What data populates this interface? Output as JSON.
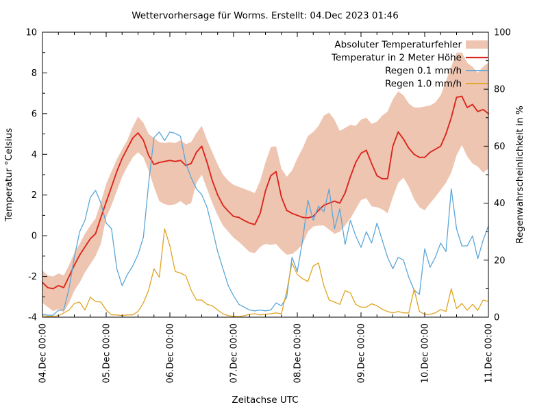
{
  "title": "Wettervorhersage für Worms. Erstellt: 04.Dec 2023 01:46",
  "chart_data": {
    "type": "line",
    "title": "Wettervorhersage für Worms. Erstellt: 04.Dec 2023 01:46",
    "xlabel": "Zeitachse UTC",
    "ylabel_left": "Temperatur °Celsius",
    "ylabel_right": "Regenwahrscheinlichkeit in %",
    "ylim_left": [
      -4,
      10
    ],
    "ylim_right": [
      0,
      100
    ],
    "yticks_left": [
      -4,
      -2,
      0,
      2,
      4,
      6,
      8,
      10
    ],
    "yticks_right": [
      0,
      20,
      40,
      60,
      80,
      100
    ],
    "x_range_hours": [
      0,
      168
    ],
    "x_major_step_hours": 24,
    "x_minor_step_hours": 6,
    "x_tick_labels": [
      "04.Dec 00:00",
      "05.Dec 00:00",
      "06.Dec 00:00",
      "07.Dec 00:00",
      "08.Dec 00:00",
      "09.Dec 00:00",
      "10.Dec 00:00",
      "11.Dec 00:00"
    ],
    "grid": false,
    "legend_position": "top-right",
    "hours": [
      0,
      2,
      4,
      6,
      8,
      10,
      12,
      14,
      16,
      18,
      20,
      22,
      24,
      26,
      28,
      30,
      32,
      34,
      36,
      38,
      40,
      42,
      44,
      46,
      48,
      50,
      52,
      54,
      56,
      58,
      60,
      62,
      64,
      66,
      68,
      70,
      72,
      74,
      76,
      78,
      80,
      82,
      84,
      86,
      88,
      90,
      92,
      94,
      96,
      98,
      100,
      102,
      104,
      106,
      108,
      110,
      112,
      114,
      116,
      118,
      120,
      122,
      124,
      126,
      128,
      130,
      132,
      134,
      136,
      138,
      140,
      142,
      144,
      146,
      148,
      150,
      152,
      154,
      156,
      158,
      160,
      162,
      164,
      166,
      168
    ],
    "series": [
      {
        "name": "Absoluter Temperaturfehler",
        "type": "band",
        "axis": "left",
        "color": "#eec5b1",
        "upper": [
          -1.7,
          -1.95,
          -2.0,
          -1.85,
          -1.95,
          -1.45,
          -0.85,
          -0.4,
          0.1,
          0.5,
          0.85,
          1.65,
          2.55,
          3.15,
          3.75,
          4.25,
          4.7,
          5.35,
          5.85,
          5.55,
          5.0,
          4.8,
          4.6,
          4.55,
          4.6,
          4.55,
          4.7,
          4.5,
          4.6,
          5.05,
          5.4,
          4.7,
          4.1,
          3.5,
          3.0,
          2.7,
          2.5,
          2.4,
          2.3,
          2.2,
          2.1,
          2.7,
          3.6,
          4.35,
          4.4,
          3.3,
          2.9,
          3.2,
          3.8,
          4.3,
          4.9,
          5.1,
          5.4,
          5.9,
          6.05,
          5.7,
          5.15,
          5.3,
          5.45,
          5.4,
          5.7,
          5.8,
          5.5,
          5.6,
          5.9,
          6.1,
          6.7,
          7.1,
          6.9,
          6.5,
          6.3,
          6.3,
          6.35,
          6.4,
          6.55,
          6.9,
          7.6,
          8.3,
          9.0,
          9.0,
          8.5,
          8.3,
          8.0,
          8.3,
          8.5
        ],
        "lower": [
          -3.3,
          -3.5,
          -3.7,
          -3.6,
          -3.75,
          -3.3,
          -2.7,
          -2.3,
          -1.8,
          -1.4,
          -1.0,
          -0.4,
          0.9,
          1.5,
          2.2,
          2.9,
          3.4,
          3.85,
          4.1,
          3.85,
          3.2,
          2.4,
          1.7,
          1.55,
          1.5,
          1.55,
          1.7,
          1.5,
          1.6,
          2.6,
          3.0,
          2.3,
          1.6,
          1.0,
          0.5,
          0.2,
          -0.1,
          -0.3,
          -0.55,
          -0.8,
          -0.85,
          -0.55,
          -0.4,
          -0.45,
          -0.4,
          -0.7,
          -0.93,
          -0.9,
          -0.7,
          -0.4,
          0.2,
          0.45,
          0.5,
          0.5,
          0.3,
          0.1,
          0.2,
          0.5,
          0.85,
          1.3,
          1.75,
          1.85,
          1.45,
          1.4,
          1.3,
          1.1,
          1.9,
          2.6,
          2.85,
          2.4,
          1.8,
          1.4,
          1.25,
          1.6,
          1.9,
          2.25,
          2.6,
          3.1,
          3.95,
          4.45,
          3.9,
          3.55,
          3.4,
          3.1,
          3.3
        ]
      },
      {
        "name": "Temperatur in 2 Meter Höhe",
        "type": "line",
        "axis": "left",
        "color": "#dc251c",
        "width": 1.9,
        "values": [
          -2.3,
          -2.55,
          -2.6,
          -2.45,
          -2.55,
          -2.0,
          -1.45,
          -0.95,
          -0.55,
          -0.15,
          0.1,
          0.9,
          1.65,
          2.4,
          3.15,
          3.8,
          4.3,
          4.8,
          5.05,
          4.7,
          3.95,
          3.5,
          3.6,
          3.65,
          3.7,
          3.65,
          3.7,
          3.45,
          3.55,
          4.1,
          4.4,
          3.6,
          2.7,
          2.0,
          1.5,
          1.2,
          0.95,
          0.9,
          0.75,
          0.62,
          0.55,
          1.1,
          2.2,
          2.95,
          3.15,
          1.9,
          1.25,
          1.1,
          1.0,
          0.9,
          0.88,
          0.95,
          1.25,
          1.5,
          1.6,
          1.7,
          1.6,
          2.1,
          2.9,
          3.6,
          4.05,
          4.2,
          3.55,
          2.95,
          2.8,
          2.8,
          4.4,
          5.1,
          4.75,
          4.3,
          4.0,
          3.85,
          3.85,
          4.1,
          4.25,
          4.4,
          5.0,
          5.8,
          6.8,
          6.85,
          6.3,
          6.45,
          6.1,
          6.2,
          6.0
        ]
      },
      {
        "name": "Regen 0.1 mm/h",
        "type": "line",
        "axis": "right",
        "color": "#5ba6d8",
        "width": 1.3,
        "values": [
          1,
          0.7,
          0.7,
          2.4,
          2.5,
          10,
          21,
          30,
          34,
          42,
          44.5,
          40,
          33,
          31,
          17,
          11,
          15,
          18,
          22,
          28,
          47,
          63,
          65,
          62,
          65,
          64.5,
          63.5,
          54,
          49,
          45,
          43,
          38.5,
          31,
          23,
          17,
          11,
          7.5,
          4.5,
          3.5,
          2.5,
          2.2,
          2.5,
          2.2,
          2.5,
          5,
          4,
          7,
          21,
          16,
          27,
          41,
          34,
          39,
          37,
          45,
          31,
          38,
          25.5,
          34,
          28.5,
          24.5,
          30,
          26,
          33,
          27,
          21,
          17,
          21,
          20,
          14,
          9.5,
          8,
          24,
          17.5,
          21,
          26,
          23,
          45,
          31,
          25,
          25,
          28.5,
          20.5,
          27,
          32
        ]
      },
      {
        "name": "Regen 1.0 mm/h",
        "type": "line",
        "axis": "right",
        "color": "#e0a321",
        "width": 1.3,
        "values": [
          0.5,
          0.3,
          0.3,
          0.5,
          1.5,
          2.5,
          4.8,
          5.3,
          2.5,
          7,
          5.5,
          5.3,
          2.5,
          0.8,
          0.8,
          0.5,
          0.8,
          0.8,
          2,
          5,
          9.5,
          17,
          14,
          31,
          25,
          16,
          15.5,
          14.5,
          9.5,
          6,
          6,
          4.5,
          4,
          2.5,
          1.2,
          0.5,
          0.3,
          0.2,
          0.5,
          1.0,
          1.2,
          0.8,
          1.0,
          1.2,
          1.5,
          1.2,
          9,
          19,
          15,
          13.5,
          12.5,
          18,
          19,
          11,
          6,
          5.3,
          4.5,
          9.3,
          8.5,
          4.5,
          3.5,
          3.5,
          4.7,
          4,
          2.8,
          2,
          1.5,
          2,
          1.5,
          1.5,
          9.8,
          2,
          1,
          1,
          1.5,
          2.7,
          2,
          10,
          3,
          4.8,
          2.4,
          4.5,
          2.4,
          6,
          5.5
        ]
      }
    ]
  }
}
